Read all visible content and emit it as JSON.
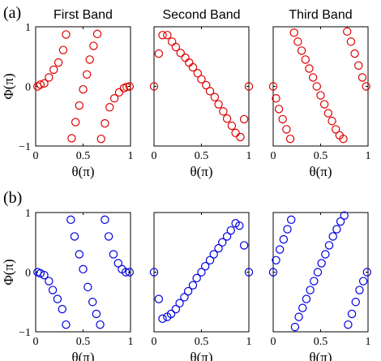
{
  "panel_labels": [
    "(a)",
    "(b)"
  ],
  "chart_data": [
    {
      "type": "scatter",
      "row": 0,
      "title": "First Band",
      "xlabel": "θ(π)",
      "ylabel": "Φ(π)",
      "xlim": [
        0,
        1
      ],
      "ylim": [
        -1,
        1
      ],
      "xticks": [
        "0",
        "0.5",
        "1"
      ],
      "yticks": [
        "1",
        "0",
        "−1"
      ],
      "marker": "open-circle",
      "color": "#e00000",
      "series": [
        {
          "name": "",
          "x": [
            0.02,
            0.05,
            0.09,
            0.14,
            0.19,
            0.24,
            0.29,
            0.32,
            0.38,
            0.42,
            0.46,
            0.5,
            0.54,
            0.57,
            0.61,
            0.65,
            0.69,
            0.73,
            0.78,
            0.83,
            0.88,
            0.93,
            0.96,
            0.99
          ],
          "y": [
            0.0,
            0.03,
            0.05,
            0.15,
            0.28,
            0.4,
            0.61,
            0.87,
            -0.87,
            -0.6,
            -0.32,
            -0.05,
            0.2,
            0.45,
            0.68,
            0.88,
            -0.88,
            -0.62,
            -0.35,
            -0.2,
            -0.1,
            -0.03,
            -0.01,
            0.0
          ]
        }
      ]
    },
    {
      "type": "scatter",
      "row": 0,
      "title": "Second Band",
      "xlabel": "θ(π)",
      "ylabel": "",
      "xlim": [
        0,
        1
      ],
      "ylim": [
        -1,
        1
      ],
      "xticks": [
        "0",
        "0.5",
        "1"
      ],
      "yticks": [],
      "marker": "open-circle",
      "color": "#e00000",
      "series": [
        {
          "name": "",
          "x": [
            0.0,
            0.05,
            0.09,
            0.14,
            0.19,
            0.23,
            0.28,
            0.33,
            0.37,
            0.41,
            0.46,
            0.5,
            0.55,
            0.59,
            0.64,
            0.68,
            0.73,
            0.77,
            0.82,
            0.86,
            0.91,
            0.95,
            1.0
          ],
          "y": [
            0.0,
            0.55,
            0.86,
            0.86,
            0.75,
            0.66,
            0.56,
            0.48,
            0.4,
            0.32,
            0.22,
            0.12,
            0.02,
            -0.08,
            -0.18,
            -0.3,
            -0.42,
            -0.54,
            -0.66,
            -0.78,
            -0.85,
            -0.55,
            0.0
          ]
        }
      ]
    },
    {
      "type": "scatter",
      "row": 0,
      "title": "Third Band",
      "xlabel": "θ(π)",
      "ylabel": "",
      "xlim": [
        0,
        1
      ],
      "ylim": [
        -1,
        1
      ],
      "xticks": [
        "0",
        "0.5",
        "1"
      ],
      "yticks": [],
      "marker": "open-circle",
      "color": "#e00000",
      "series": [
        {
          "name": "",
          "x": [
            0.0,
            0.03,
            0.06,
            0.1,
            0.14,
            0.18,
            0.22,
            0.26,
            0.3,
            0.34,
            0.38,
            0.42,
            0.46,
            0.5,
            0.54,
            0.58,
            0.62,
            0.66,
            0.7,
            0.74,
            0.78,
            0.82,
            0.86,
            0.9,
            0.94,
            0.98
          ],
          "y": [
            0.0,
            -0.2,
            -0.38,
            -0.55,
            -0.72,
            -0.88,
            0.9,
            0.75,
            0.6,
            0.45,
            0.3,
            0.15,
            0.0,
            -0.15,
            -0.3,
            -0.45,
            -0.58,
            -0.72,
            -0.82,
            -0.88,
            0.92,
            0.75,
            0.55,
            0.35,
            0.15,
            0.0
          ]
        }
      ]
    },
    {
      "type": "scatter",
      "row": 1,
      "title": "",
      "xlabel": "θ(π)",
      "ylabel": "Φ(π)",
      "xlim": [
        0,
        1
      ],
      "ylim": [
        -1,
        1
      ],
      "xticks": [
        "0",
        "0.5",
        "1"
      ],
      "yticks": [
        "1",
        "0",
        "−1"
      ],
      "marker": "open-circle",
      "color": "#0000e0",
      "series": [
        {
          "name": "",
          "x": [
            0.02,
            0.05,
            0.09,
            0.14,
            0.18,
            0.23,
            0.28,
            0.32,
            0.37,
            0.41,
            0.46,
            0.5,
            0.55,
            0.6,
            0.64,
            0.68,
            0.73,
            0.77,
            0.82,
            0.87,
            0.91,
            0.95,
            0.99
          ],
          "y": [
            0.0,
            -0.02,
            -0.05,
            -0.15,
            -0.3,
            -0.45,
            -0.62,
            -0.88,
            0.88,
            0.6,
            0.3,
            0.05,
            -0.25,
            -0.5,
            -0.7,
            -0.88,
            0.88,
            0.6,
            0.3,
            0.15,
            0.05,
            0.0,
            0.0
          ]
        }
      ]
    },
    {
      "type": "scatter",
      "row": 1,
      "title": "",
      "xlabel": "θ(π)",
      "ylabel": "",
      "xlim": [
        0,
        1
      ],
      "ylim": [
        -1,
        1
      ],
      "xticks": [
        "0",
        "0.5",
        "1"
      ],
      "yticks": [],
      "marker": "open-circle",
      "color": "#0000e0",
      "series": [
        {
          "name": "",
          "x": [
            0.0,
            0.05,
            0.09,
            0.14,
            0.18,
            0.23,
            0.27,
            0.32,
            0.36,
            0.41,
            0.45,
            0.5,
            0.54,
            0.59,
            0.63,
            0.68,
            0.72,
            0.77,
            0.81,
            0.86,
            0.9,
            0.95,
            1.0
          ],
          "y": [
            0.0,
            -0.45,
            -0.78,
            -0.75,
            -0.7,
            -0.62,
            -0.52,
            -0.42,
            -0.32,
            -0.22,
            -0.1,
            0.0,
            0.1,
            0.2,
            0.3,
            0.4,
            0.5,
            0.6,
            0.7,
            0.82,
            0.78,
            0.45,
            0.0
          ]
        }
      ]
    },
    {
      "type": "scatter",
      "row": 1,
      "title": "",
      "xlabel": "θ(π)",
      "ylabel": "",
      "xlim": [
        0,
        1
      ],
      "ylim": [
        -1,
        1
      ],
      "xticks": [
        "0",
        "0.5",
        "1"
      ],
      "yticks": [],
      "marker": "open-circle",
      "color": "#0000e0",
      "series": [
        {
          "name": "",
          "x": [
            0.0,
            0.03,
            0.07,
            0.11,
            0.15,
            0.19,
            0.23,
            0.27,
            0.31,
            0.35,
            0.39,
            0.43,
            0.47,
            0.51,
            0.55,
            0.59,
            0.63,
            0.67,
            0.71,
            0.75,
            0.79,
            0.83,
            0.87,
            0.91,
            0.95,
            0.99
          ],
          "y": [
            0.0,
            0.2,
            0.38,
            0.55,
            0.72,
            0.88,
            -0.92,
            -0.75,
            -0.6,
            -0.45,
            -0.3,
            -0.15,
            0.0,
            0.15,
            0.3,
            0.45,
            0.6,
            0.72,
            0.85,
            0.95,
            -0.88,
            -0.7,
            -0.5,
            -0.3,
            -0.15,
            0.0
          ]
        }
      ]
    }
  ]
}
